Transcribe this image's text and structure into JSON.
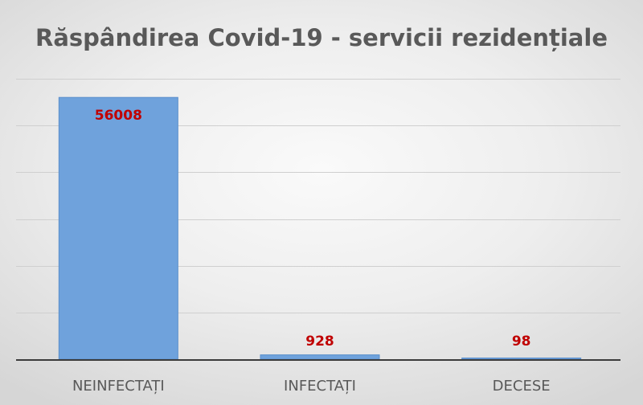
{
  "chart_data": {
    "type": "bar",
    "title": "Răspândirea Covid-19 - servicii rezidențiale",
    "categories": [
      "NEINFECTAȚI",
      "INFECTAȚI",
      "DECESE"
    ],
    "values": [
      56008,
      928,
      98
    ],
    "data_labels": [
      "56008",
      "928",
      "98"
    ],
    "ylim": [
      0,
      60000
    ],
    "y_gridlines": [
      0,
      10000,
      20000,
      30000,
      40000,
      50000,
      60000
    ],
    "y_tick_labels_visible": false,
    "grid": true,
    "legend": "none",
    "colors": {
      "bar": "#6fa2dc",
      "data_label": "#c00000",
      "text": "#595959"
    }
  }
}
